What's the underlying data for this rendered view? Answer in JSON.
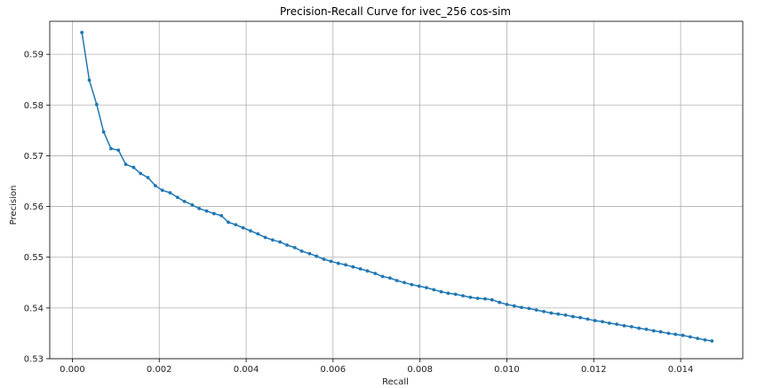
{
  "chart_data": {
    "type": "line",
    "title": "Precision-Recall Curve for ivec_256 cos-sim",
    "xlabel": "Recall",
    "ylabel": "Precision",
    "xlim": [
      -0.00052,
      0.01543
    ],
    "ylim": [
      0.53,
      0.5965
    ],
    "grid": true,
    "legend": "none",
    "x_ticks": [
      0.0,
      0.002,
      0.004,
      0.006,
      0.008,
      0.01,
      0.012,
      0.014
    ],
    "x_tick_labels": [
      "0.000",
      "0.002",
      "0.004",
      "0.006",
      "0.008",
      "0.010",
      "0.012",
      "0.014"
    ],
    "y_ticks": [
      0.53,
      0.54,
      0.55,
      0.56,
      0.57,
      0.58,
      0.59
    ],
    "y_tick_labels": [
      "0.53",
      "0.54",
      "0.55",
      "0.56",
      "0.57",
      "0.58",
      "0.59"
    ],
    "colors": {
      "series": "#1f77b4",
      "grid": "#b0b0b0"
    },
    "series": [
      {
        "x": [
          0.00022,
          0.00039,
          0.00056,
          0.00072,
          0.00089,
          0.00106,
          0.00123,
          0.00141,
          0.00157,
          0.00174,
          0.00191,
          0.00207,
          0.00225,
          0.00242,
          0.00258,
          0.00276,
          0.00292,
          0.00309,
          0.00326,
          0.00343,
          0.00359,
          0.00376,
          0.00393,
          0.0041,
          0.00427,
          0.00444,
          0.00461,
          0.00478,
          0.00494,
          0.00512,
          0.00528,
          0.00546,
          0.00562,
          0.00579,
          0.00595,
          0.00612,
          0.00629,
          0.00646,
          0.00663,
          0.00679,
          0.00697,
          0.00714,
          0.00731,
          0.00747,
          0.00764,
          0.00781,
          0.00798,
          0.00815,
          0.00832,
          0.00849,
          0.00865,
          0.00882,
          0.00899,
          0.00916,
          0.00933,
          0.0095,
          0.00966,
          0.00983,
          0.01,
          0.01017,
          0.01034,
          0.01051,
          0.01068,
          0.01085,
          0.01102,
          0.01118,
          0.01135,
          0.01152,
          0.01169,
          0.01186,
          0.01203,
          0.0122,
          0.01236,
          0.01253,
          0.0127,
          0.01287,
          0.01304,
          0.01321,
          0.01338,
          0.01354,
          0.01372,
          0.01388,
          0.01405,
          0.01422,
          0.01439,
          0.01456,
          0.01472
        ],
        "y": [
          0.5943,
          0.5849,
          0.5801,
          0.5747,
          0.5714,
          0.5711,
          0.5683,
          0.5677,
          0.5665,
          0.5657,
          0.5641,
          0.5632,
          0.5627,
          0.5618,
          0.561,
          0.5603,
          0.5596,
          0.5591,
          0.5586,
          0.5582,
          0.5569,
          0.5564,
          0.5558,
          0.5552,
          0.5546,
          0.5539,
          0.5534,
          0.553,
          0.5524,
          0.5519,
          0.5512,
          0.5507,
          0.5502,
          0.5496,
          0.5492,
          0.5488,
          0.5485,
          0.5481,
          0.5477,
          0.5473,
          0.5468,
          0.5462,
          0.5459,
          0.5454,
          0.545,
          0.5446,
          0.5443,
          0.544,
          0.5436,
          0.5432,
          0.5429,
          0.5427,
          0.5424,
          0.5421,
          0.5419,
          0.5418,
          0.5416,
          0.5411,
          0.5407,
          0.5404,
          0.5401,
          0.5399,
          0.5396,
          0.5393,
          0.539,
          0.5388,
          0.5386,
          0.5383,
          0.5381,
          0.5378,
          0.5375,
          0.5373,
          0.537,
          0.5368,
          0.5365,
          0.5363,
          0.536,
          0.5358,
          0.5355,
          0.5353,
          0.535,
          0.5348,
          0.5346,
          0.5343,
          0.534,
          0.5337,
          0.5335
        ]
      }
    ]
  }
}
